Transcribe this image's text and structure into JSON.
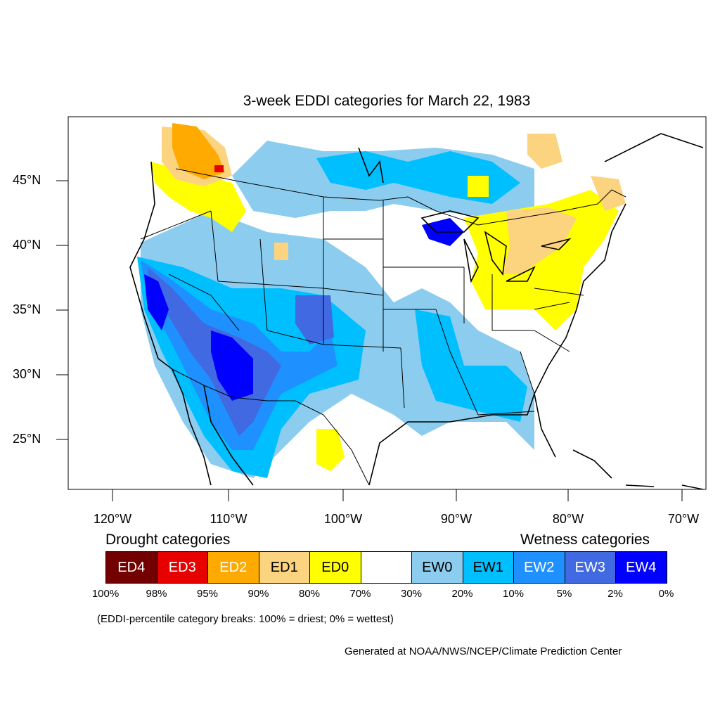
{
  "title": "3-week EDDI categories for March 22, 1983",
  "lat_labels": [
    "45°N",
    "40°N",
    "35°N",
    "30°N",
    "25°N"
  ],
  "lon_labels": [
    "120°W",
    "110°W",
    "100°W",
    "90°W",
    "80°W",
    "70°W"
  ],
  "legend": {
    "drought_heading": "Drought categories",
    "wetness_heading": "Wetness categories",
    "categories": [
      {
        "label": "ED4",
        "color": "#730000",
        "text_color": "#ffffff"
      },
      {
        "label": "ED3",
        "color": "#e60000",
        "text_color": "#ffffff"
      },
      {
        "label": "ED2",
        "color": "#ffaa00",
        "text_color": "#ffffff"
      },
      {
        "label": "ED1",
        "color": "#fcd37f",
        "text_color": "#000000"
      },
      {
        "label": "ED0",
        "color": "#ffff00",
        "text_color": "#000000"
      },
      {
        "label": "",
        "color": "#ffffff",
        "text_color": "#000000"
      },
      {
        "label": "EW0",
        "color": "#8ccdef",
        "text_color": "#000000"
      },
      {
        "label": "EW1",
        "color": "#00bfff",
        "text_color": "#000000"
      },
      {
        "label": "EW2",
        "color": "#1e90ff",
        "text_color": "#ffffff"
      },
      {
        "label": "EW3",
        "color": "#4169e1",
        "text_color": "#ffffff"
      },
      {
        "label": "EW4",
        "color": "#0000ff",
        "text_color": "#ffffff"
      }
    ],
    "breaks": [
      "100%",
      "98%",
      "95%",
      "90%",
      "80%",
      "70%",
      "30%",
      "20%",
      "10%",
      "5%",
      "2%",
      "0%"
    ]
  },
  "note": "(EDDI-percentile category breaks: 100% = driest; 0% = wettest)",
  "credit": "Generated at NOAA/NWS/NCEP/Climate Prediction Center"
}
